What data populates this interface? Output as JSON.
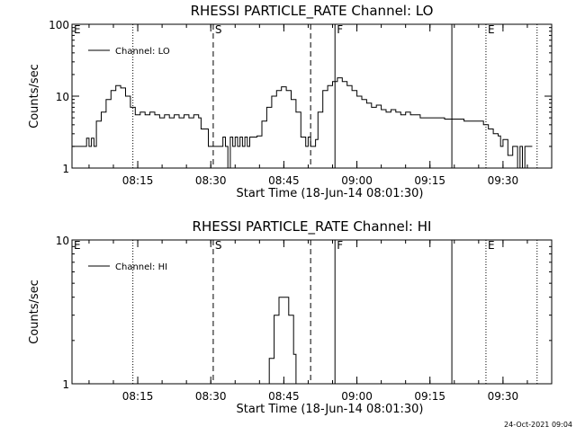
{
  "chart_data": [
    {
      "type": "line",
      "title": "RHESSI PARTICLE_RATE Channel: LO",
      "xlabel": "Start Time (18-Jun-14 08:01:30)",
      "ylabel": "Counts/sec",
      "yscale": "log",
      "ylim": [
        1,
        100
      ],
      "xlim": [
        "08:01:30",
        "09:40:00"
      ],
      "x_ticks": [
        "08:15",
        "08:30",
        "08:45",
        "09:00",
        "09:15",
        "09:30"
      ],
      "y_ticks": [
        "1",
        "10",
        "100"
      ],
      "legend": {
        "position": "top-left",
        "entries": [
          "Channel: LO"
        ]
      },
      "grid": false,
      "markers": [
        {
          "time": "08:01:30",
          "style": "none",
          "label": "E"
        },
        {
          "time": "08:14:00",
          "style": "dotted",
          "label": ""
        },
        {
          "time": "08:30:30",
          "style": "dashed",
          "label": "S"
        },
        {
          "time": "08:50:30",
          "style": "dashed",
          "label": ""
        },
        {
          "time": "08:55:30",
          "style": "solid",
          "label": "F"
        },
        {
          "time": "09:19:30",
          "style": "solid",
          "label": ""
        },
        {
          "time": "09:26:30",
          "style": "dotted",
          "label": "E"
        },
        {
          "time": "09:37:00",
          "style": "dotted",
          "label": ""
        }
      ],
      "series": [
        {
          "name": "Channel: LO",
          "points": [
            [
              "08:01:30",
              2
            ],
            [
              "08:03:00",
              2
            ],
            [
              "08:04:00",
              2
            ],
            [
              "08:04:30",
              2.6
            ],
            [
              "08:05:00",
              2
            ],
            [
              "08:05:30",
              2.6
            ],
            [
              "08:06:00",
              2
            ],
            [
              "08:06:30",
              4.5
            ],
            [
              "08:07:30",
              6
            ],
            [
              "08:08:30",
              9
            ],
            [
              "08:09:30",
              12
            ],
            [
              "08:10:30",
              14
            ],
            [
              "08:11:30",
              13
            ],
            [
              "08:12:30",
              10
            ],
            [
              "08:13:30",
              7
            ],
            [
              "08:14:30",
              5.5
            ],
            [
              "08:15:30",
              6
            ],
            [
              "08:16:30",
              5.5
            ],
            [
              "08:17:30",
              6
            ],
            [
              "08:18:30",
              5.5
            ],
            [
              "08:19:30",
              5
            ],
            [
              "08:20:30",
              5.5
            ],
            [
              "08:21:30",
              5
            ],
            [
              "08:22:30",
              5.5
            ],
            [
              "08:23:30",
              5
            ],
            [
              "08:24:30",
              5.5
            ],
            [
              "08:25:30",
              5
            ],
            [
              "08:26:30",
              5.5
            ],
            [
              "08:27:30",
              5
            ],
            [
              "08:28:00",
              3.5
            ],
            [
              "08:29:00",
              3.5
            ],
            [
              "08:29:30",
              2
            ],
            [
              "08:31:00",
              2
            ],
            [
              "08:32:00",
              2
            ],
            [
              "08:32:30",
              2.7
            ],
            [
              "08:33:00",
              2
            ],
            [
              "08:33:30",
              1
            ],
            [
              "08:34:00",
              2.7
            ],
            [
              "08:34:30",
              2
            ],
            [
              "08:35:00",
              2.7
            ],
            [
              "08:35:30",
              2
            ],
            [
              "08:36:00",
              2.7
            ],
            [
              "08:36:30",
              2
            ],
            [
              "08:37:00",
              2.7
            ],
            [
              "08:37:30",
              2
            ],
            [
              "08:38:00",
              2.7
            ],
            [
              "08:38:30",
              2.7
            ],
            [
              "08:39:30",
              2.8
            ],
            [
              "08:40:30",
              4.5
            ],
            [
              "08:41:30",
              7
            ],
            [
              "08:42:30",
              10
            ],
            [
              "08:43:30",
              12
            ],
            [
              "08:44:30",
              13.5
            ],
            [
              "08:45:30",
              12
            ],
            [
              "08:46:30",
              9
            ],
            [
              "08:47:30",
              6
            ],
            [
              "08:48:30",
              2.7
            ],
            [
              "08:49:30",
              2
            ],
            [
              "08:50:00",
              2.7
            ],
            [
              "08:50:30",
              2
            ],
            [
              "08:51:30",
              2.5
            ],
            [
              "08:52:00",
              6
            ],
            [
              "08:53:00",
              12
            ],
            [
              "08:54:00",
              14
            ],
            [
              "08:55:00",
              16
            ],
            [
              "08:56:00",
              18
            ],
            [
              "08:57:00",
              16
            ],
            [
              "08:58:00",
              14
            ],
            [
              "08:59:00",
              12
            ],
            [
              "09:00:00",
              10
            ],
            [
              "09:01:00",
              9
            ],
            [
              "09:02:00",
              8
            ],
            [
              "09:03:00",
              7
            ],
            [
              "09:04:00",
              7.5
            ],
            [
              "09:05:00",
              6.5
            ],
            [
              "09:06:00",
              6
            ],
            [
              "09:07:00",
              6.5
            ],
            [
              "09:08:00",
              6
            ],
            [
              "09:09:00",
              5.5
            ],
            [
              "09:10:00",
              6
            ],
            [
              "09:11:00",
              5.5
            ],
            [
              "09:12:00",
              5.5
            ],
            [
              "09:13:00",
              5
            ],
            [
              "09:14:00",
              5
            ],
            [
              "09:15:00",
              5
            ],
            [
              "09:16:00",
              5
            ],
            [
              "09:17:00",
              5
            ],
            [
              "09:18:00",
              4.8
            ],
            [
              "09:19:00",
              4.8
            ],
            [
              "09:20:00",
              4.8
            ],
            [
              "09:21:00",
              4.8
            ],
            [
              "09:22:00",
              4.5
            ],
            [
              "09:23:00",
              4.5
            ],
            [
              "09:24:00",
              4.5
            ],
            [
              "09:25:00",
              4.5
            ],
            [
              "09:26:00",
              4
            ],
            [
              "09:27:00",
              3.5
            ],
            [
              "09:28:00",
              3
            ],
            [
              "09:29:00",
              2.8
            ],
            [
              "09:29:30",
              2
            ],
            [
              "09:30:00",
              2.5
            ],
            [
              "09:31:00",
              1.5
            ],
            [
              "09:32:00",
              2
            ],
            [
              "09:33:00",
              1
            ],
            [
              "09:33:30",
              2
            ],
            [
              "09:34:00",
              1
            ],
            [
              "09:34:30",
              2
            ],
            [
              "09:35:00",
              2
            ],
            [
              "09:36:00",
              2
            ]
          ]
        }
      ]
    },
    {
      "type": "line",
      "title": "RHESSI PARTICLE_RATE Channel: HI",
      "xlabel": "Start Time (18-Jun-14 08:01:30)",
      "ylabel": "Counts/sec",
      "yscale": "log",
      "ylim": [
        1,
        10
      ],
      "xlim": [
        "08:01:30",
        "09:40:00"
      ],
      "x_ticks": [
        "08:15",
        "08:30",
        "08:45",
        "09:00",
        "09:15",
        "09:30"
      ],
      "y_ticks": [
        "1",
        "10"
      ],
      "legend": {
        "position": "top-left",
        "entries": [
          "Channel: HI"
        ]
      },
      "grid": false,
      "markers": [
        {
          "time": "08:01:30",
          "style": "none",
          "label": "E"
        },
        {
          "time": "08:14:00",
          "style": "dotted",
          "label": ""
        },
        {
          "time": "08:30:30",
          "style": "dashed",
          "label": "S"
        },
        {
          "time": "08:50:30",
          "style": "dashed",
          "label": ""
        },
        {
          "time": "08:55:30",
          "style": "solid",
          "label": "F"
        },
        {
          "time": "09:19:30",
          "style": "solid",
          "label": ""
        },
        {
          "time": "09:26:30",
          "style": "dotted",
          "label": "E"
        },
        {
          "time": "09:37:00",
          "style": "dotted",
          "label": ""
        }
      ],
      "series": [
        {
          "name": "Channel: HI",
          "points": [
            [
              "08:41:30",
              1
            ],
            [
              "08:42:00",
              1.5
            ],
            [
              "08:43:00",
              3
            ],
            [
              "08:44:00",
              4
            ],
            [
              "08:45:00",
              4
            ],
            [
              "08:46:00",
              3
            ],
            [
              "08:47:00",
              1.6
            ],
            [
              "08:47:30",
              1
            ]
          ]
        }
      ]
    }
  ],
  "footer": {
    "timestamp": "24-Oct-2021 09:04"
  }
}
